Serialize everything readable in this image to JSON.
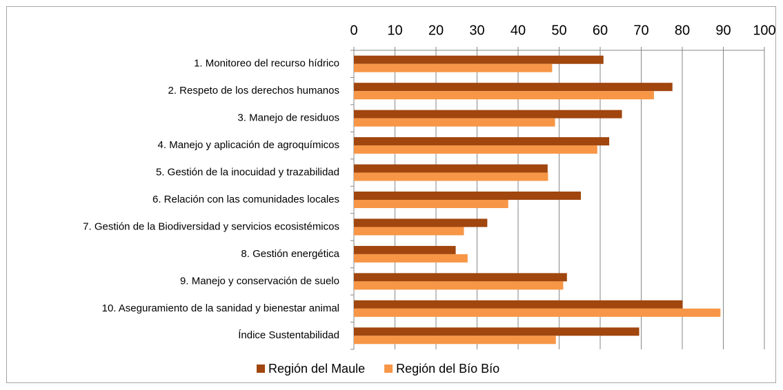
{
  "chart_data": {
    "type": "hbar",
    "categories": [
      "1. Monitoreo del recurso hídrico",
      "2. Respeto de los derechos humanos",
      "3. Manejo de residuos ",
      "4. Manejo y aplicación de agroquímicos",
      "5. Gestión de la inocuidad y trazabilidad",
      "6. Relación con las comunidades locales",
      "7. Gestión de la Biodiversidad y servicios ecosistémicos",
      "8. Gestión energética",
      "9. Manejo y conservación de suelo",
      "10. Aseguramiento de la sanidad y bienestar animal",
      "Índice Sustentabilidad"
    ],
    "series": [
      {
        "name": "Región del Maule",
        "color": "#a0460e",
        "values": [
          60.8,
          77.6,
          65.3,
          62.2,
          47.2,
          55.3,
          32.5,
          24.8,
          51.9,
          80.1,
          69.5
        ]
      },
      {
        "name": "Región del Bío Bío",
        "color": "#f79646",
        "values": [
          48.3,
          73.1,
          49.0,
          59.3,
          47.3,
          37.6,
          26.8,
          27.7,
          51.0,
          89.3,
          49.2
        ]
      }
    ],
    "xlim": [
      0,
      100
    ],
    "xticks": [
      0,
      10,
      20,
      30,
      40,
      50,
      60,
      70,
      80,
      90,
      100
    ],
    "grid": true,
    "legend": "bottom"
  }
}
